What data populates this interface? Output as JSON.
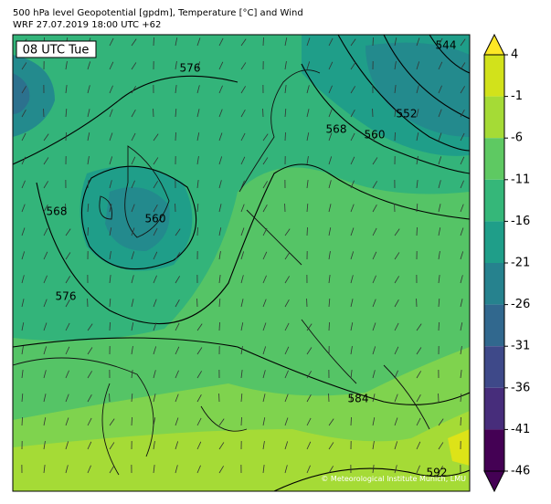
{
  "header": {
    "title": "500 hPa level Geopotential [gpdm], Temperature [°C] and Wind",
    "subtitle": "WRF 27.07.2019 18:00 UTC +62"
  },
  "map": {
    "time_label": "08 UTC Tue",
    "copyright": "© Meteorological Institute Munich, LMU",
    "contour_labels": [
      576,
      568,
      560,
      552,
      544,
      568,
      560,
      576,
      584,
      592
    ]
  },
  "colorbar": {
    "ticks": [
      4,
      -1,
      -6,
      -11,
      -16,
      -21,
      -26,
      -31,
      -36,
      -41,
      -46
    ],
    "colors": [
      "#d2e21b",
      "#a5db36",
      "#5ec962",
      "#35b779",
      "#1f9e89",
      "#26828e",
      "#31688e",
      "#3e4989",
      "#472d7b",
      "#440154"
    ],
    "over_color": "#fde725",
    "under_color": "#440154"
  }
}
